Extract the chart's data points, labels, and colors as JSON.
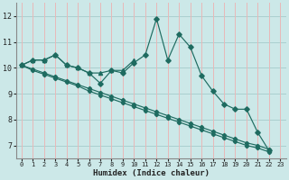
{
  "xlabel": "Humidex (Indice chaleur)",
  "bg_color": "#cce8e8",
  "grid_color_h": "#aacfcf",
  "grid_color_v": "#e8b8b8",
  "line_color": "#1e6b60",
  "xlim": [
    -0.5,
    23.5
  ],
  "ylim": [
    6.5,
    12.5
  ],
  "yticks": [
    7,
    8,
    9,
    10,
    11,
    12
  ],
  "xticks": [
    0,
    1,
    2,
    3,
    4,
    5,
    6,
    7,
    8,
    9,
    10,
    11,
    12,
    13,
    14,
    15,
    16,
    17,
    18,
    19,
    20,
    21,
    22,
    23
  ],
  "s1_x": [
    0,
    1,
    2,
    3,
    4,
    5,
    6,
    7,
    8,
    9,
    10,
    11,
    12,
    13,
    14,
    15,
    16,
    17,
    18,
    19,
    20,
    21,
    22
  ],
  "s1_y": [
    10.1,
    10.3,
    10.3,
    10.5,
    10.1,
    10.0,
    9.8,
    9.4,
    9.9,
    9.8,
    10.2,
    10.5,
    11.9,
    10.3,
    11.3,
    10.8,
    9.7,
    9.1,
    8.6,
    8.4,
    8.4,
    7.5,
    6.8
  ],
  "s2_x": [
    0,
    1,
    2,
    3,
    4,
    5,
    6,
    7,
    8,
    9,
    10
  ],
  "s2_y": [
    10.1,
    10.3,
    10.3,
    10.5,
    10.1,
    10.0,
    9.8,
    9.8,
    9.9,
    9.9,
    10.3
  ],
  "s3_x": [
    0,
    1,
    2,
    3,
    4,
    5,
    6,
    7,
    8,
    9,
    10,
    11,
    12,
    13,
    14,
    15,
    16,
    17,
    18,
    19,
    20,
    21,
    22
  ],
  "s3_y": [
    10.1,
    9.95,
    9.8,
    9.65,
    9.5,
    9.35,
    9.2,
    9.05,
    8.9,
    8.75,
    8.6,
    8.45,
    8.3,
    8.15,
    8.0,
    7.85,
    7.7,
    7.55,
    7.4,
    7.25,
    7.1,
    7.0,
    6.85
  ],
  "s4_x": [
    0,
    1,
    2,
    3,
    4,
    5,
    6,
    7,
    8,
    9,
    10,
    11,
    12,
    13,
    14,
    15,
    16,
    17,
    18,
    19,
    20,
    21,
    22
  ],
  "s4_y": [
    10.1,
    9.9,
    9.75,
    9.6,
    9.45,
    9.3,
    9.1,
    8.95,
    8.8,
    8.65,
    8.5,
    8.35,
    8.2,
    8.05,
    7.9,
    7.75,
    7.6,
    7.45,
    7.3,
    7.15,
    7.0,
    6.9,
    6.75
  ]
}
